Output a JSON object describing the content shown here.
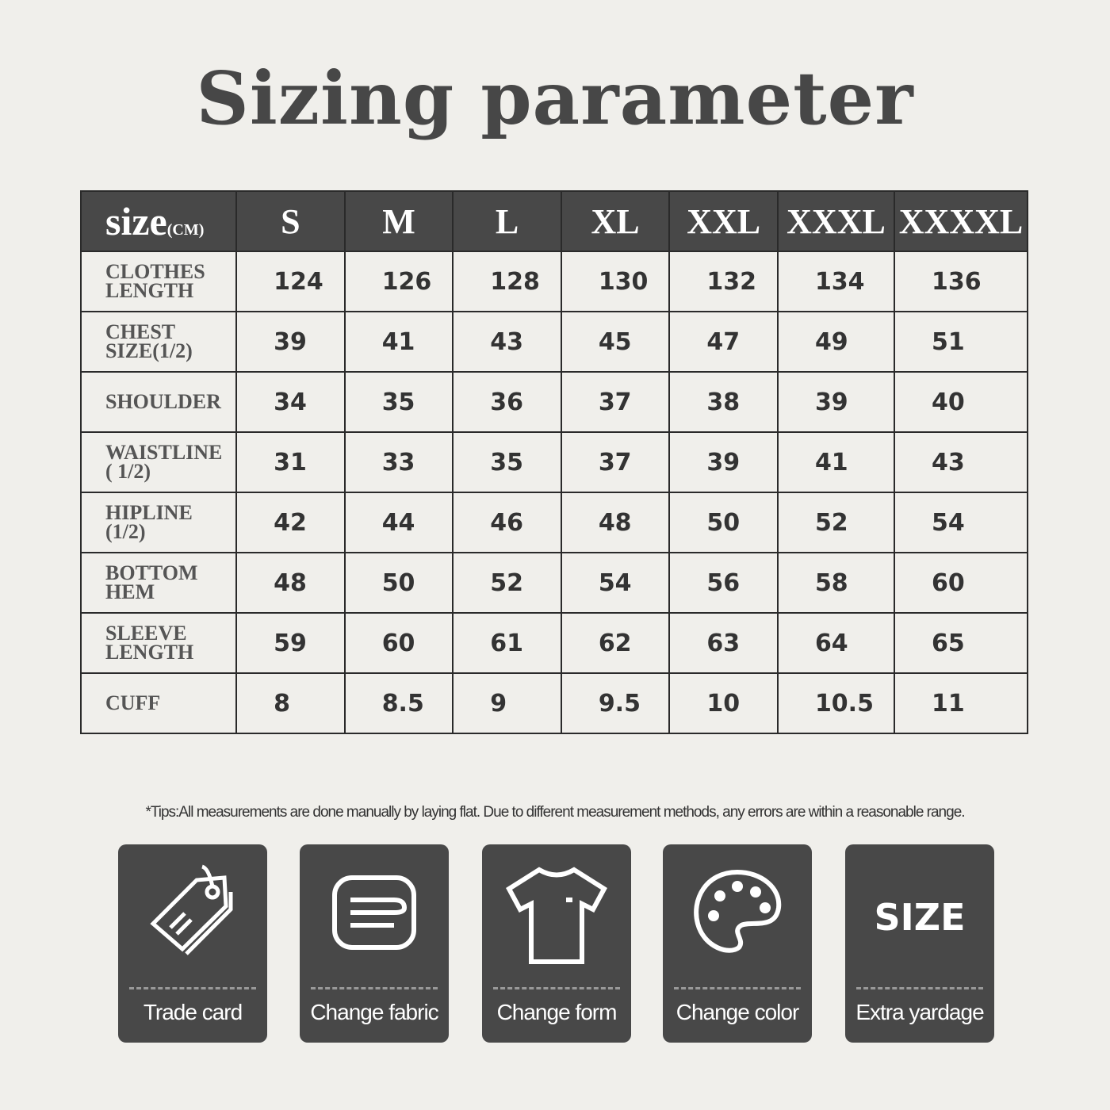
{
  "title": "Sizing parameter",
  "table": {
    "header_label": "size",
    "header_unit": "(CM)",
    "sizes": [
      "S",
      "M",
      "L",
      "XL",
      "XXL",
      "XXXL",
      "XXXXL"
    ],
    "rows": [
      {
        "label": "CLOTHES\nLENGTH",
        "values": [
          "124",
          "126",
          "128",
          "130",
          "132",
          "134",
          "136"
        ]
      },
      {
        "label": "CHEST\nSIZE(1/2)",
        "values": [
          "39",
          "41",
          "43",
          "45",
          "47",
          "49",
          "51"
        ]
      },
      {
        "label": "SHOULDER",
        "values": [
          "34",
          "35",
          "36",
          "37",
          "38",
          "39",
          "40"
        ]
      },
      {
        "label": "WAISTLINE\n( 1/2)",
        "values": [
          "31",
          "33",
          "35",
          "37",
          "39",
          "41",
          "43"
        ]
      },
      {
        "label": "HIPLINE\n(1/2)",
        "values": [
          "42",
          "44",
          "46",
          "48",
          "50",
          "52",
          "54"
        ]
      },
      {
        "label": "BOTTOM\nHEM",
        "values": [
          "48",
          "50",
          "52",
          "54",
          "56",
          "58",
          "60"
        ]
      },
      {
        "label": "SLEEVE\nLENGTH",
        "values": [
          "59",
          "60",
          "61",
          "62",
          "63",
          "64",
          "65"
        ]
      },
      {
        "label": "CUFF",
        "values": [
          "8",
          "8.5",
          "9",
          "9.5",
          "10",
          "10.5",
          "11"
        ]
      }
    ]
  },
  "tips": "*Tips:All measurements are done manually by laying flat. Due to different measurement methods, any errors are within a reasonable range.",
  "cards": [
    {
      "label": "Trade card",
      "icon": "tag-icon"
    },
    {
      "label": "Change fabric",
      "icon": "fabric-icon"
    },
    {
      "label": "Change form",
      "icon": "tshirt-icon"
    },
    {
      "label": "Change color",
      "icon": "palette-icon"
    },
    {
      "label": "Extra yardage",
      "icon": "size-icon",
      "icon_text": "SIZE"
    }
  ]
}
